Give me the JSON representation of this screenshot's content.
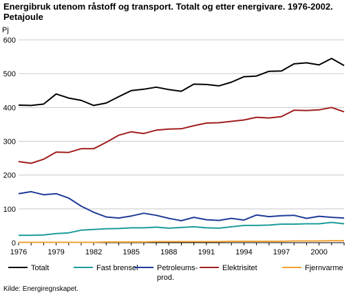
{
  "chart_data": {
    "type": "line",
    "title": "Energibruk utenom råstoff og transport. Totalt og etter energivare. 1976-2002. Petajoule",
    "ylabel": "Pj",
    "xlabel": "",
    "ylim": [
      0,
      600
    ],
    "yticks": [
      0,
      100,
      200,
      300,
      400,
      500,
      600
    ],
    "xticks": [
      1976,
      1979,
      1982,
      1985,
      1988,
      1991,
      1994,
      1997,
      2000
    ],
    "grid": "horizontal",
    "legend_position": "bottom",
    "x": [
      1976,
      1977,
      1978,
      1979,
      1980,
      1981,
      1982,
      1983,
      1984,
      1985,
      1986,
      1987,
      1988,
      1989,
      1990,
      1991,
      1992,
      1993,
      1994,
      1995,
      1996,
      1997,
      1998,
      1999,
      2000,
      2001,
      2002
    ],
    "series": [
      {
        "name": "Totalt",
        "color": "#000000",
        "values": [
          407,
          406,
          410,
          440,
          428,
          421,
          406,
          413,
          432,
          450,
          454,
          460,
          453,
          448,
          469,
          468,
          464,
          475,
          491,
          493,
          507,
          508,
          529,
          532,
          526,
          545,
          524
        ]
      },
      {
        "name": "Fast brensel",
        "color": "#1a9b9b",
        "values": [
          22,
          22,
          23,
          27,
          29,
          37,
          39,
          41,
          42,
          44,
          44,
          46,
          43,
          45,
          47,
          44,
          43,
          47,
          51,
          51,
          52,
          55,
          55,
          56,
          56,
          60,
          56
        ]
      },
      {
        "name": "Petroleums-prod.",
        "color": "#1e3a96",
        "values": [
          145,
          151,
          142,
          145,
          132,
          108,
          90,
          76,
          73,
          79,
          87,
          81,
          72,
          65,
          75,
          68,
          66,
          72,
          67,
          82,
          77,
          80,
          81,
          72,
          78,
          75,
          73
        ]
      },
      {
        "name": "Elektrisitet",
        "color": "#a01c1c",
        "values": [
          240,
          235,
          247,
          268,
          267,
          278,
          278,
          297,
          318,
          328,
          323,
          333,
          336,
          337,
          346,
          354,
          355,
          359,
          363,
          371,
          369,
          373,
          392,
          391,
          393,
          400,
          387
        ]
      },
      {
        "name": "Fjernvarme",
        "color": "#f0a030",
        "values": [
          1,
          1,
          1,
          1,
          1,
          1,
          1,
          2,
          2,
          2,
          2,
          3,
          3,
          3,
          3,
          3,
          3,
          4,
          4,
          4,
          4,
          4,
          5,
          5,
          5,
          6,
          6
        ]
      }
    ],
    "legend": [
      {
        "label": "Totalt",
        "color": "#000000"
      },
      {
        "label": "Fast brensel",
        "color": "#1a9b9b"
      },
      {
        "label": "Petroleums-",
        "label2": "prod.",
        "color": "#1e3a96"
      },
      {
        "label": "Elektrisitet",
        "color": "#a01c1c"
      },
      {
        "label": "Fjernvarme",
        "color": "#f0a030"
      }
    ],
    "source": "Kilde: Energiregnskapet."
  }
}
